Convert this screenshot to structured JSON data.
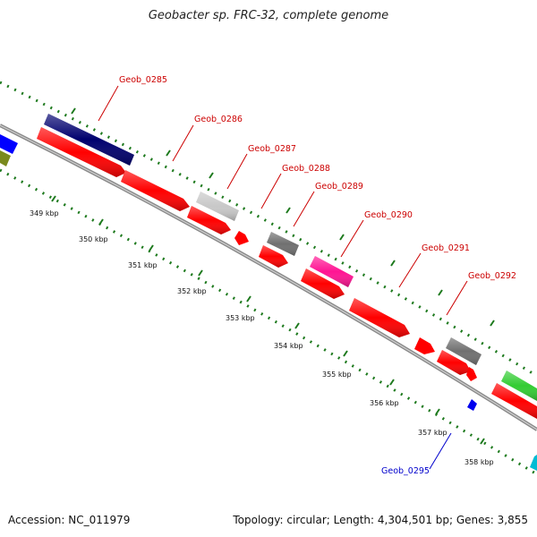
{
  "title": "Geobacter sp. FRC-32, complete genome",
  "footer": {
    "accession": "Accession: NC_011979",
    "summary": "Topology: circular; Length: 4,304,501 bp; Genes: 3,855"
  },
  "colors": {
    "label_red": "#cc0000",
    "label_blue": "#0000cc",
    "tick_green": "#1e7a1e",
    "backbone": "#8a8a8a",
    "cds_red": "#ff0000",
    "navy": "#00006e",
    "light_gray": "#c8c8c8",
    "dark_gray": "#707070",
    "magenta": "#ff1493",
    "green": "#33cc33",
    "cyan": "#00bcd4",
    "blue": "#0000ff",
    "olive": "#7a8a1e"
  },
  "kbp_ticks": [
    "349 kbp",
    "350 kbp",
    "351 kbp",
    "352 kbp",
    "353 kbp",
    "354 kbp",
    "355 kbp",
    "356 kbp",
    "357 kbp",
    "358 kbp"
  ],
  "gene_labels": [
    {
      "name": "Geob_0285",
      "color": "red"
    },
    {
      "name": "Geob_0286",
      "color": "red"
    },
    {
      "name": "Geob_0287",
      "color": "red"
    },
    {
      "name": "Geob_0288",
      "color": "red"
    },
    {
      "name": "Geob_0289",
      "color": "red"
    },
    {
      "name": "Geob_0290",
      "color": "red"
    },
    {
      "name": "Geob_0291",
      "color": "red"
    },
    {
      "name": "Geob_0292",
      "color": "red"
    },
    {
      "name": "Geob_0295",
      "color": "blue"
    }
  ]
}
